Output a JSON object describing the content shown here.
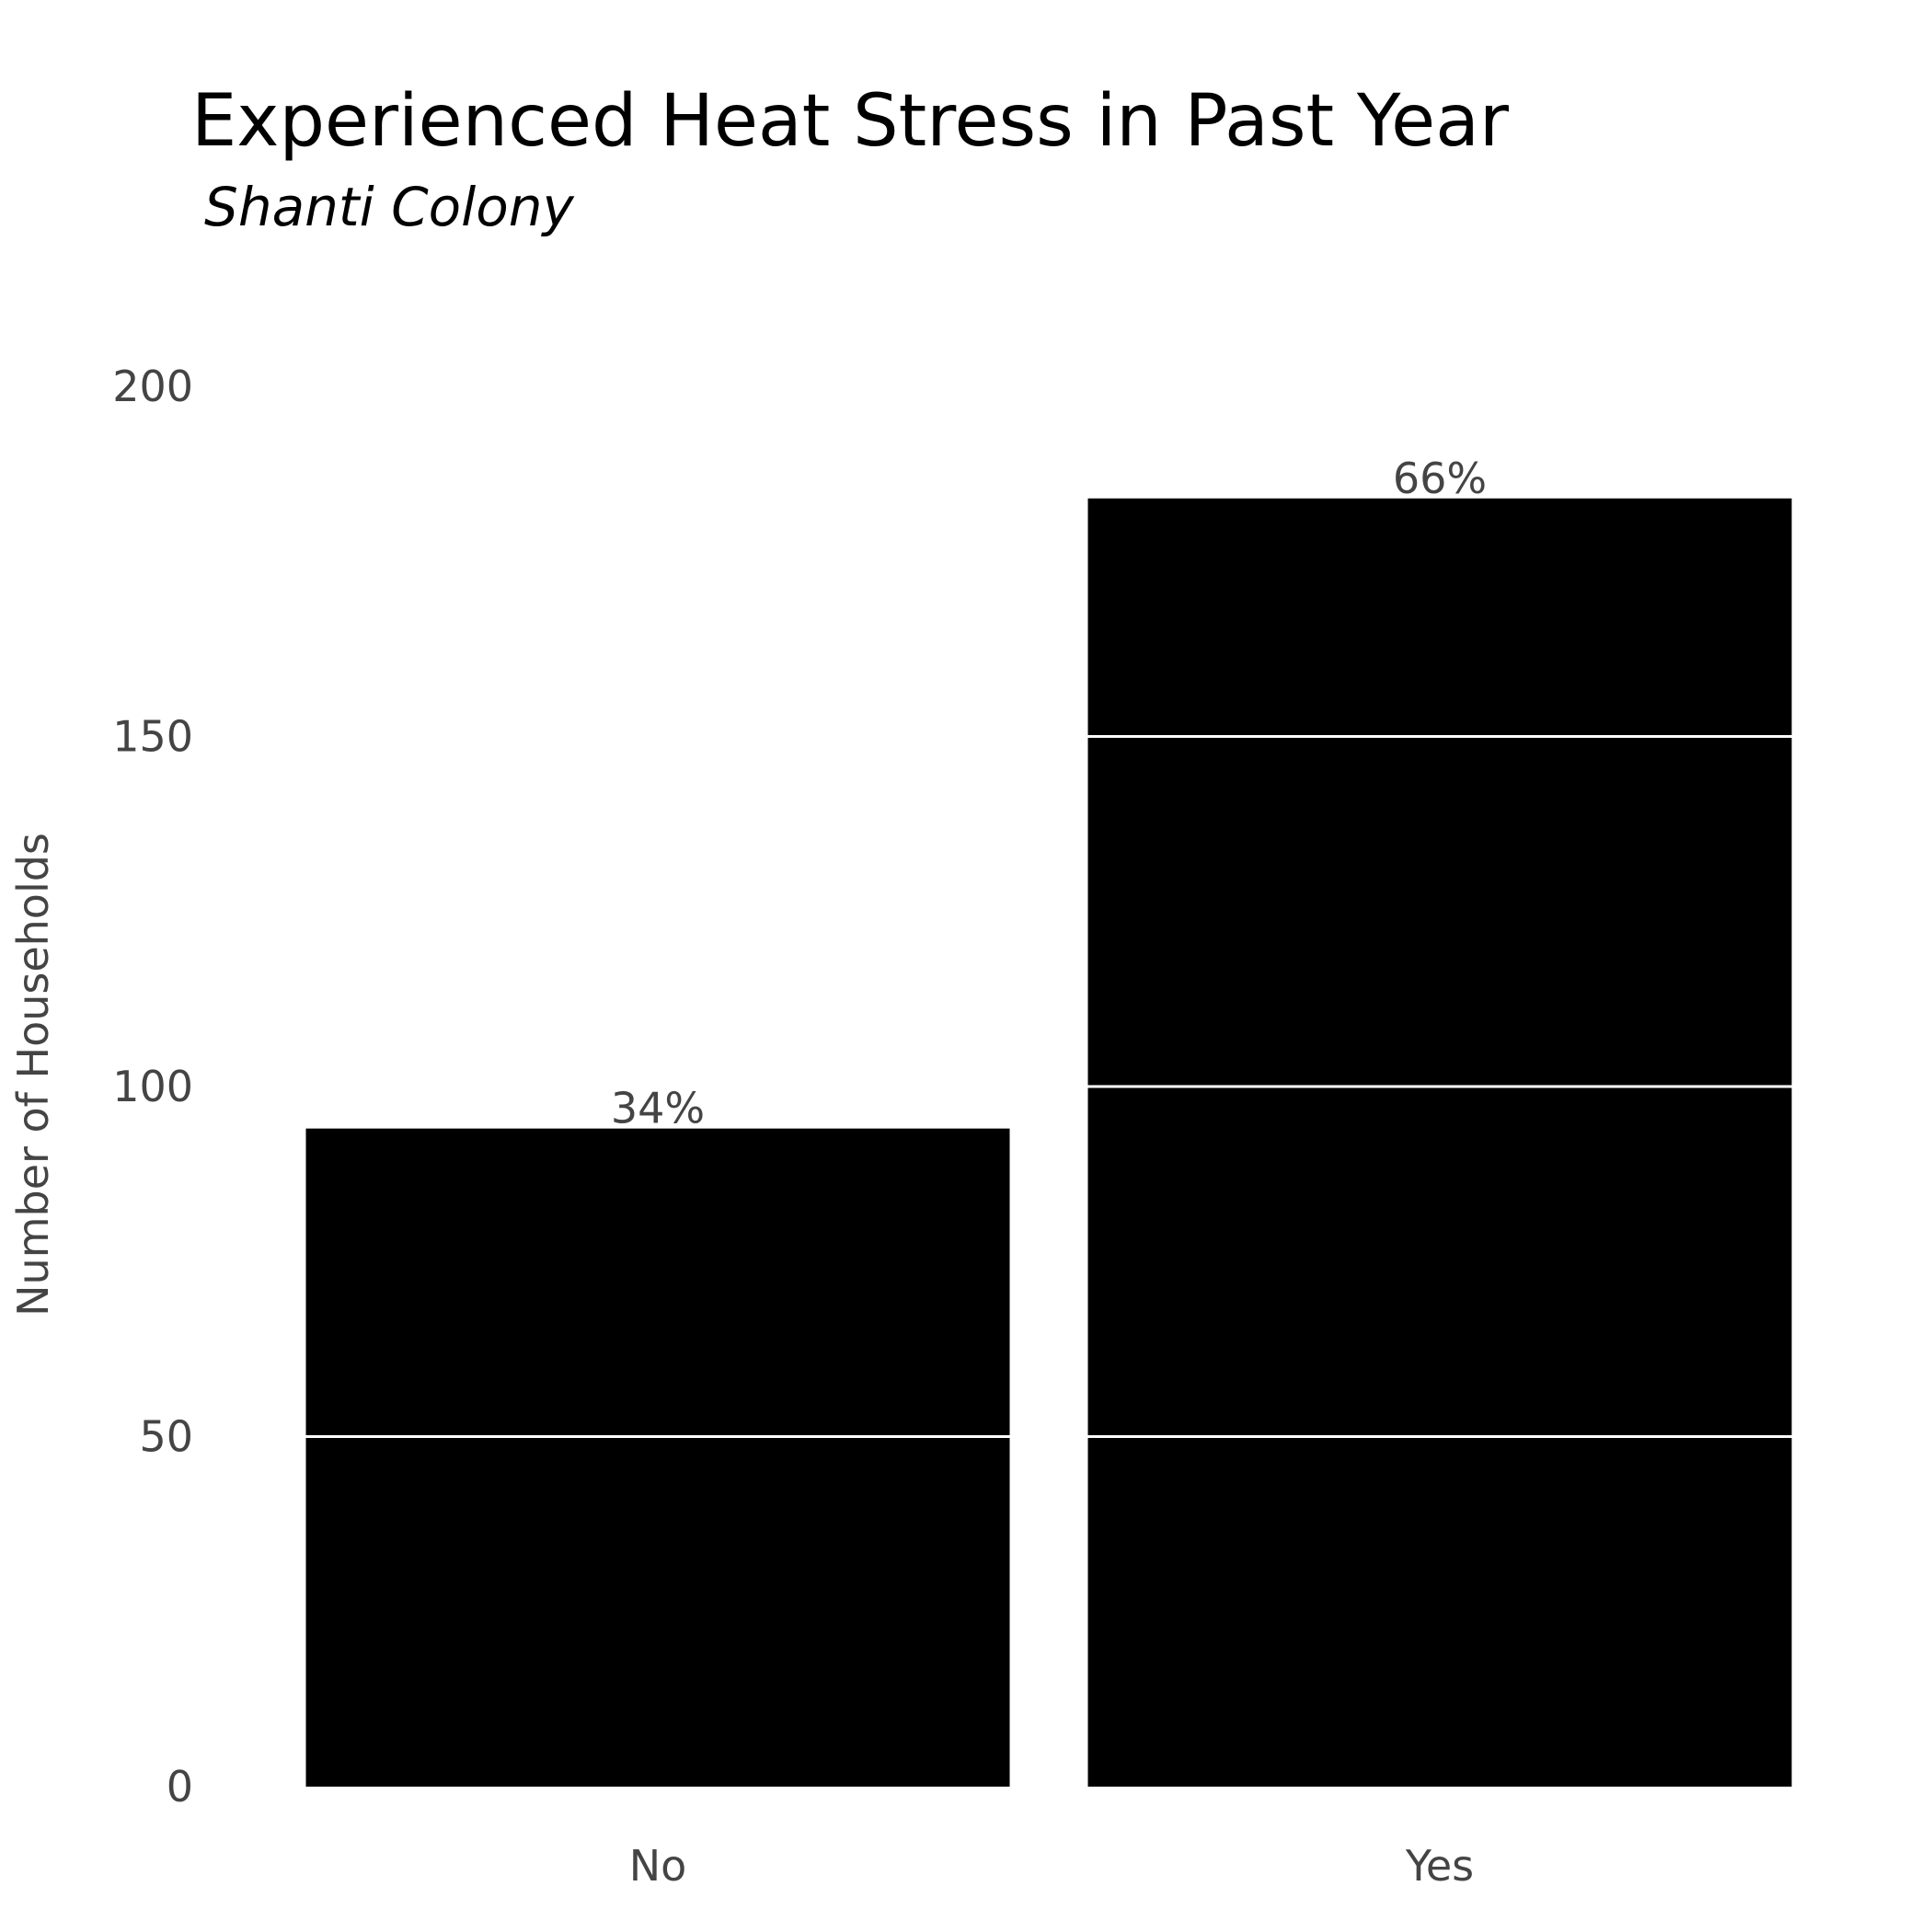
{
  "chart_data": {
    "type": "bar",
    "title": "Experienced Heat Stress in Past Year",
    "subtitle": "Shanti Colony",
    "xlabel": "",
    "ylabel": "Number of Households",
    "categories": [
      "No",
      "Yes"
    ],
    "values": [
      94,
      184
    ],
    "data_labels": [
      "34%",
      "66%"
    ],
    "ylim": [
      0,
      200
    ],
    "yticks": [
      0,
      50,
      100,
      150,
      200
    ],
    "ytick_labels": [
      "0",
      "50",
      "100",
      "150",
      "200"
    ],
    "grid": true,
    "legend": "none",
    "bar_color": "#000000",
    "grid_color": "#ffffff",
    "background_color": "#ffffff"
  }
}
